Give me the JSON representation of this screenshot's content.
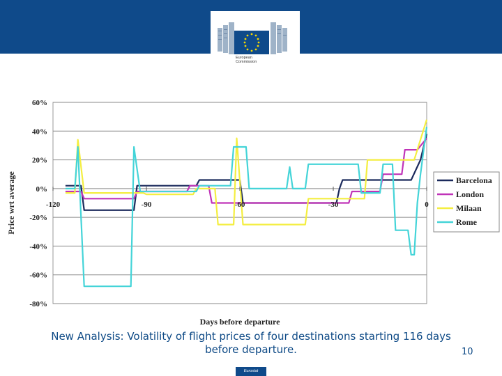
{
  "header": {
    "logo_line1": "European",
    "logo_line2": "Commission"
  },
  "chart_data": {
    "type": "line",
    "title": "",
    "xlabel": "Days before departure",
    "ylabel": "Price wrt average",
    "xlim": [
      -120,
      0
    ],
    "ylim": [
      -80,
      60
    ],
    "x_ticks": [
      -120,
      -90,
      -60,
      -30,
      0
    ],
    "y_ticks": [
      60,
      40,
      20,
      0,
      -20,
      -40,
      -60,
      -80
    ],
    "y_tick_labels": [
      "60%",
      "40%",
      "20%",
      "0%",
      "-20%",
      "-40%",
      "-60%",
      "-80%"
    ],
    "grid": "horizontal",
    "legend_position": "right",
    "series": [
      {
        "name": "Barcelona",
        "color": "#1b2a5c",
        "points": [
          [
            -116,
            2
          ],
          [
            -111,
            2
          ],
          [
            -110,
            -15
          ],
          [
            -94,
            -15
          ],
          [
            -93,
            2
          ],
          [
            -74,
            2
          ],
          [
            -73,
            6
          ],
          [
            -60,
            6
          ],
          [
            -59,
            -10
          ],
          [
            -38,
            -10
          ],
          [
            -32,
            -10
          ],
          [
            -29,
            -10
          ],
          [
            -28,
            0
          ],
          [
            -27,
            6
          ],
          [
            -15,
            6
          ],
          [
            -5,
            6
          ],
          [
            -2,
            20
          ],
          [
            0,
            38
          ]
        ]
      },
      {
        "name": "London",
        "color": "#c033b8",
        "points": [
          [
            -116,
            -2
          ],
          [
            -111,
            -2
          ],
          [
            -110,
            -7
          ],
          [
            -94,
            -7
          ],
          [
            -93,
            -2
          ],
          [
            -77,
            -2
          ],
          [
            -76,
            2
          ],
          [
            -70,
            2
          ],
          [
            -69,
            -10
          ],
          [
            -60,
            -10
          ],
          [
            -59,
            -10
          ],
          [
            -25,
            -10
          ],
          [
            -24,
            -2
          ],
          [
            -15,
            -2
          ],
          [
            -14,
            10
          ],
          [
            -8,
            10
          ],
          [
            -7,
            27
          ],
          [
            -3,
            27
          ],
          [
            0,
            35
          ]
        ]
      },
      {
        "name": "Milaan",
        "color": "#f4ee40",
        "points": [
          [
            -116,
            -3
          ],
          [
            -113,
            -3
          ],
          [
            -112,
            34
          ],
          [
            -110,
            -3
          ],
          [
            -94,
            -3
          ],
          [
            -91,
            -3
          ],
          [
            -90,
            -4
          ],
          [
            -75,
            -4
          ],
          [
            -74,
            0
          ],
          [
            -68,
            0
          ],
          [
            -67,
            -25
          ],
          [
            -62,
            -25
          ],
          [
            -61,
            35
          ],
          [
            -59,
            -25
          ],
          [
            -39,
            -25
          ],
          [
            -38,
            -7
          ],
          [
            -20,
            -7
          ],
          [
            -19,
            20
          ],
          [
            -4,
            20
          ],
          [
            0,
            48
          ]
        ]
      },
      {
        "name": "Rome",
        "color": "#44d4d8",
        "points": [
          [
            -116,
            0
          ],
          [
            -113,
            0
          ],
          [
            -112,
            29
          ],
          [
            -110,
            -68
          ],
          [
            -95,
            -68
          ],
          [
            -94,
            29
          ],
          [
            -92,
            -2
          ],
          [
            -74,
            -2
          ],
          [
            -73,
            2
          ],
          [
            -63,
            2
          ],
          [
            -62,
            29
          ],
          [
            -58,
            29
          ],
          [
            -57,
            0
          ],
          [
            -52,
            0
          ],
          [
            -45,
            0
          ],
          [
            -44,
            15
          ],
          [
            -43,
            0
          ],
          [
            -39,
            0
          ],
          [
            -38,
            17
          ],
          [
            -22,
            17
          ],
          [
            -21,
            -3
          ],
          [
            -15,
            -3
          ],
          [
            -14,
            17
          ],
          [
            -11,
            17
          ],
          [
            -10,
            -29
          ],
          [
            -6,
            -29
          ],
          [
            -5,
            -46
          ],
          [
            -4,
            -46
          ],
          [
            -3,
            -10
          ],
          [
            -2,
            10
          ],
          [
            0,
            43
          ]
        ]
      }
    ]
  },
  "caption": {
    "line1": "New Analysis: Volatility of flight prices of four destinations starting 116 days",
    "line2": "before departure."
  },
  "page_number": "10",
  "footer_label": "Eurostat"
}
